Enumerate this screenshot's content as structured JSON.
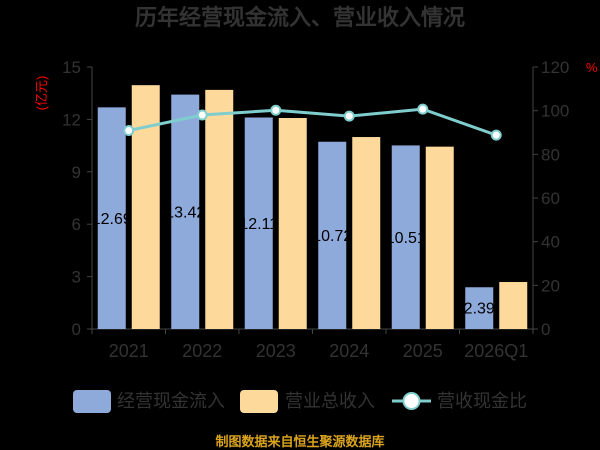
{
  "footer": "制图数据来自恒生聚源数据库",
  "colors": {
    "background": "#000000",
    "axis_unit": "#ff0000",
    "footer": "#d9a31e"
  },
  "chart_data": {
    "type": "bar",
    "title": "历年经营现金流入、营业收入情况",
    "categories": [
      "2021",
      "2022",
      "2023",
      "2024",
      "2025",
      "2026Q1"
    ],
    "series": [
      {
        "name": "经营现金流入",
        "type": "bar",
        "y_axis": "left",
        "color": "#8eaadb",
        "show_labels": true,
        "values": [
          12.69,
          13.42,
          12.11,
          10.72,
          10.51,
          2.39
        ]
      },
      {
        "name": "营业总收入",
        "type": "bar",
        "y_axis": "left",
        "color": "#fdd99b",
        "show_labels": false,
        "values": [
          13.96,
          13.69,
          12.08,
          10.99,
          10.44,
          2.69
        ]
      },
      {
        "name": "营收现金比",
        "type": "line",
        "y_axis": "right",
        "color": "#80cdce",
        "values": [
          90.9,
          98.0,
          100.2,
          97.5,
          100.7,
          88.8
        ]
      }
    ],
    "ylabel": "(亿元)",
    "ylabel_right": "%",
    "ylim": [
      0,
      15
    ],
    "yticks": [
      0,
      3,
      6,
      9,
      12,
      15
    ],
    "ylim_right": [
      0,
      120
    ],
    "yticks_right": [
      0,
      20,
      40,
      60,
      80,
      100,
      120
    ],
    "grid": false,
    "legend": "bottom"
  }
}
